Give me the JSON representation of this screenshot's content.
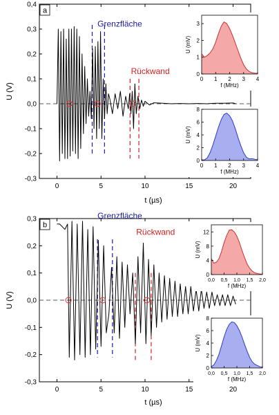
{
  "colors": {
    "signal": "#000000",
    "axis": "#000000",
    "baseline": "#555555",
    "interface": "#1a1aa6",
    "backwall": "#d42020",
    "marker": "#e03030",
    "red_fill": "#f4a8a8",
    "red_line": "#c83232",
    "blue_fill": "#a8aef0",
    "blue_line": "#2a3cc0"
  },
  "chart_data": [
    {
      "type": "line",
      "panel_label": "a",
      "xlabel": "t (µs)",
      "ylabel": "U (V)",
      "xlim": [
        -2,
        22
      ],
      "ylim": [
        -0.3,
        0.4
      ],
      "xticks": [
        0,
        5,
        10,
        15,
        20
      ],
      "yticks": [
        -0.3,
        -0.2,
        -0.1,
        0.0,
        0.1,
        0.2,
        0.3,
        0.4
      ],
      "ytick_labels": [
        "-0,3",
        "-0,2",
        "-0,1",
        "0,0",
        "0,1",
        "0,2",
        "0,3",
        "0,4"
      ],
      "baseline_y": 0.0,
      "annotations": [
        {
          "text": "Grenzfläche",
          "x": 4.6,
          "y": 0.31,
          "color": "interface"
        },
        {
          "text": "Rückwand",
          "x": 8.4,
          "y": 0.12,
          "color": "backwall"
        }
      ],
      "interface_lines": [
        4.0,
        5.4
      ],
      "backwall_lines": [
        8.3,
        9.3
      ],
      "markers": [
        1.4,
        4.6,
        8.6
      ],
      "series": [
        {
          "x": [
            0.0,
            0.15,
            0.3,
            0.45,
            0.6,
            0.75,
            0.9,
            1.05,
            1.2,
            1.35,
            1.5,
            1.65,
            1.8,
            1.95,
            2.1,
            2.25,
            2.4,
            2.55,
            2.7,
            2.85,
            3.0,
            3.15,
            3.3,
            3.45,
            3.6,
            3.75,
            3.9,
            4.05,
            4.2,
            4.35,
            4.5,
            4.65,
            4.8,
            4.95,
            5.1,
            5.25,
            5.4,
            5.55,
            5.7,
            5.85,
            6.0,
            6.3,
            6.6,
            6.9,
            7.2,
            7.5,
            7.8,
            8.1,
            8.25,
            8.4,
            8.55,
            8.7,
            8.85,
            9.0,
            9.2,
            9.4,
            9.6,
            9.8,
            10.0,
            10.5,
            11.0,
            12.0,
            13.0,
            14.0,
            15.0,
            16.0,
            17.0,
            18.0,
            19.0,
            20.0,
            20.3
          ],
          "y": [
            0.0,
            0.3,
            -0.23,
            0.29,
            -0.2,
            0.3,
            -0.22,
            0.26,
            -0.22,
            0.3,
            -0.21,
            0.3,
            -0.19,
            0.31,
            -0.2,
            0.3,
            -0.22,
            0.27,
            -0.18,
            0.2,
            -0.12,
            0.15,
            -0.08,
            0.1,
            -0.05,
            0.05,
            -0.06,
            0.22,
            -0.1,
            0.23,
            -0.14,
            0.25,
            -0.1,
            0.29,
            -0.14,
            0.1,
            -0.06,
            0.08,
            -0.04,
            0.04,
            0.02,
            -0.04,
            0.04,
            -0.02,
            0.05,
            -0.05,
            0.03,
            -0.02,
            0.04,
            -0.04,
            0.05,
            -0.1,
            0.08,
            -0.04,
            0.03,
            -0.02,
            0.015,
            -0.01,
            0.01,
            -0.005,
            0.004,
            0.002,
            0.0,
            0.001,
            0.0,
            0.001,
            0.0,
            0.002,
            0.002,
            0.003,
            0.0
          ]
        }
      ],
      "insets": [
        {
          "xlabel": "f (MHz)",
          "ylabel": "U (mV)",
          "xlim": [
            0,
            4
          ],
          "ylim": [
            0,
            3.5
          ],
          "xticks": [
            0,
            1,
            2,
            3,
            4
          ],
          "yticks": [
            0,
            1,
            2,
            3
          ],
          "x": [
            0,
            0.2,
            0.4,
            0.6,
            0.8,
            1.0,
            1.2,
            1.4,
            1.6,
            1.8,
            2.0,
            2.2,
            2.4,
            2.6,
            2.8,
            3.0,
            3.2,
            3.4,
            3.6,
            3.8,
            4.0
          ],
          "y": [
            1.2,
            1.0,
            1.1,
            1.25,
            1.5,
            1.9,
            2.4,
            2.85,
            3.1,
            3.0,
            2.7,
            2.3,
            1.85,
            1.4,
            0.95,
            0.55,
            0.3,
            0.15,
            0.08,
            0.05,
            0.04
          ],
          "color": "red"
        },
        {
          "xlabel": "f (MHz)",
          "ylabel": "U (mV)",
          "xlim": [
            0,
            4
          ],
          "ylim": [
            0,
            8
          ],
          "xticks": [
            0,
            1,
            2,
            3,
            4
          ],
          "yticks": [
            0,
            2,
            4,
            6,
            8
          ],
          "x": [
            0,
            0.2,
            0.4,
            0.6,
            0.8,
            1.0,
            1.2,
            1.4,
            1.6,
            1.8,
            2.0,
            2.2,
            2.4,
            2.6,
            2.8,
            3.0,
            3.2,
            3.4,
            3.6,
            3.8,
            4.0
          ],
          "y": [
            0.1,
            0.1,
            0.4,
            1.2,
            2.4,
            3.8,
            5.2,
            6.4,
            7.2,
            7.4,
            7.0,
            6.2,
            5.0,
            3.6,
            2.3,
            1.2,
            0.5,
            0.25,
            0.3,
            0.2,
            0.1
          ],
          "color": "blue"
        }
      ]
    },
    {
      "type": "line",
      "panel_label": "b",
      "xlabel": "t (µs)",
      "ylabel": "U (V)",
      "xlim": [
        -2,
        22
      ],
      "ylim": [
        -0.3,
        0.3
      ],
      "xticks": [
        0,
        5,
        10,
        15,
        20
      ],
      "yticks": [
        -0.3,
        -0.2,
        -0.1,
        0.0,
        0.1,
        0.2,
        0.3
      ],
      "ytick_labels": [
        "-0,3",
        "-0,2",
        "-0,1",
        "0,0",
        "0,1",
        "0,2",
        "0,3"
      ],
      "baseline_y": 0.0,
      "annotations": [
        {
          "text": "Grenzfläche",
          "x": 4.6,
          "y": 0.3,
          "color": "interface"
        },
        {
          "text": "Rückwand",
          "x": 9.0,
          "y": 0.24,
          "color": "backwall"
        }
      ],
      "interface_lines": [
        4.6,
        6.3
      ],
      "backwall_lines": [
        8.9,
        10.7
      ],
      "markers": [
        1.3,
        5.2,
        10.2
      ],
      "series": [
        {
          "x": [
            0.0,
            0.3,
            0.6,
            0.9,
            1.2,
            1.4,
            1.7,
            2.0,
            2.3,
            2.6,
            2.9,
            3.2,
            3.5,
            3.8,
            4.1,
            4.4,
            4.7,
            5.0,
            5.3,
            5.6,
            5.9,
            6.2,
            6.5,
            6.8,
            7.1,
            7.4,
            7.7,
            8.0,
            8.3,
            8.6,
            8.9,
            9.2,
            9.5,
            9.8,
            10.1,
            10.4,
            10.7,
            11.0,
            11.3,
            11.6,
            11.9,
            12.2,
            12.5,
            12.8,
            13.1,
            13.4,
            13.7,
            14.0,
            14.3,
            14.6,
            14.9,
            15.2,
            15.5,
            15.8,
            16.1,
            16.4,
            16.7,
            17.0,
            17.3,
            17.6,
            17.9,
            18.2,
            18.5,
            18.8,
            19.1,
            19.4,
            19.7,
            20.0,
            20.3
          ],
          "y": [
            0.28,
            0.28,
            0.27,
            0.26,
            0.28,
            -0.21,
            0.29,
            -0.22,
            0.28,
            -0.2,
            0.29,
            -0.21,
            0.26,
            -0.2,
            0.27,
            -0.18,
            0.22,
            -0.17,
            0.2,
            -0.12,
            -0.05,
            0.12,
            -0.12,
            0.16,
            -0.14,
            0.14,
            -0.1,
            0.13,
            -0.05,
            0.1,
            -0.16,
            0.16,
            -0.12,
            0.21,
            -0.16,
            0.15,
            -0.13,
            0.13,
            -0.1,
            0.1,
            -0.08,
            0.09,
            -0.07,
            0.08,
            -0.06,
            0.07,
            -0.06,
            0.06,
            -0.05,
            0.05,
            -0.05,
            0.05,
            -0.04,
            0.04,
            -0.04,
            0.04,
            -0.03,
            0.03,
            -0.03,
            0.03,
            -0.02,
            0.02,
            -0.02,
            0.02,
            -0.02,
            0.02,
            -0.02,
            0.015,
            -0.015
          ]
        }
      ],
      "insets": [
        {
          "xlabel": "f (MHz)",
          "ylabel": "U (mV)",
          "xlim": [
            0,
            2
          ],
          "ylim": [
            0,
            14
          ],
          "xticks": [
            0,
            0.5,
            1.0,
            1.5,
            2.0
          ],
          "yticks": [
            0,
            4,
            8,
            12
          ],
          "xtick_labels": [
            "0,0",
            "0,5",
            "1,0",
            "1,5",
            "2,0"
          ],
          "x": [
            0,
            0.1,
            0.2,
            0.3,
            0.4,
            0.5,
            0.6,
            0.7,
            0.8,
            0.9,
            1.0,
            1.1,
            1.2,
            1.3,
            1.4,
            1.5,
            1.6,
            1.7,
            1.8,
            1.9,
            2.0
          ],
          "y": [
            4.5,
            3.2,
            3.5,
            4.5,
            6.5,
            9.0,
            11.0,
            12.5,
            12.6,
            12.0,
            10.8,
            9.0,
            6.8,
            4.8,
            3.0,
            1.8,
            1.0,
            0.5,
            0.3,
            0.2,
            0.1
          ],
          "color": "red"
        },
        {
          "xlabel": "f (MHz)",
          "ylabel": "U (mV)",
          "xlim": [
            0,
            2
          ],
          "ylim": [
            0,
            8
          ],
          "xticks": [
            0,
            0.5,
            1.0,
            1.5,
            2.0
          ],
          "yticks": [
            0,
            2,
            4,
            6,
            8
          ],
          "xtick_labels": [
            "0,0",
            "0,5",
            "1,0",
            "1,5",
            "2,0"
          ],
          "x": [
            0,
            0.1,
            0.2,
            0.3,
            0.4,
            0.5,
            0.6,
            0.7,
            0.8,
            0.9,
            1.0,
            1.1,
            1.2,
            1.3,
            1.4,
            1.5,
            1.6,
            1.7,
            1.8,
            1.9,
            2.0
          ],
          "y": [
            0.2,
            0.5,
            1.2,
            2.2,
            3.6,
            5.0,
            6.2,
            7.0,
            7.4,
            7.3,
            6.8,
            6.0,
            5.0,
            3.8,
            2.7,
            1.7,
            1.0,
            0.6,
            0.4,
            0.2,
            0.1
          ],
          "color": "blue"
        }
      ]
    }
  ]
}
